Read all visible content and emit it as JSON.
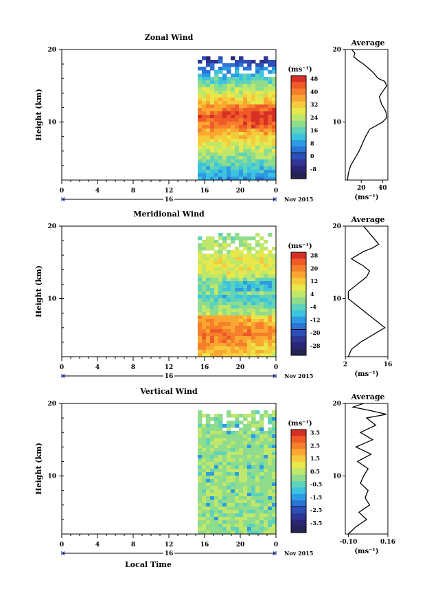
{
  "chart_data": [
    {
      "type": "heatmap",
      "title": "Zonal Wind",
      "ylabel": "Height (km)",
      "ylim": [
        2,
        20
      ],
      "yticks": [
        "10",
        "20"
      ],
      "xticks": [
        "0",
        "4",
        "8",
        "12",
        "16",
        "20",
        "0"
      ],
      "date_mid": "16",
      "date_end": "Nov 2015",
      "colorbar": {
        "unit": "(ms⁻¹)",
        "labels": [
          "48",
          "40",
          "32",
          "24",
          "16",
          "8",
          "0",
          "-8"
        ],
        "colors": [
          "#d63026",
          "#ef5a28",
          "#f57f2a",
          "#fba631",
          "#f5cb3b",
          "#e8e84b",
          "#bfe76a",
          "#8fdc8c",
          "#5fd3b9",
          "#3dc3de",
          "#2d9be3",
          "#2b74d6",
          "#2f4fb8",
          "#2e3592",
          "#2b2473",
          "#252352"
        ]
      },
      "average": {
        "title": "Average",
        "xlabel": "(ms⁻¹)",
        "xticks": [
          "20",
          "40"
        ],
        "xlim": [
          5,
          45
        ],
        "profile": [
          [
            7,
            2
          ],
          [
            8,
            3
          ],
          [
            10,
            4
          ],
          [
            14,
            5
          ],
          [
            18,
            6
          ],
          [
            21,
            7
          ],
          [
            24,
            8
          ],
          [
            28,
            9
          ],
          [
            34,
            9.5
          ],
          [
            40,
            10
          ],
          [
            44,
            10.6
          ],
          [
            43,
            11.5
          ],
          [
            39,
            12.5
          ],
          [
            37,
            13.5
          ],
          [
            40,
            14.2
          ],
          [
            44,
            15
          ],
          [
            42,
            15.6
          ],
          [
            36,
            16
          ],
          [
            33,
            16.5
          ],
          [
            30,
            17
          ],
          [
            26,
            17.5
          ],
          [
            22,
            18
          ],
          [
            17,
            18.5
          ],
          [
            13,
            19
          ],
          [
            14,
            19.5
          ],
          [
            11,
            20
          ]
        ]
      }
    },
    {
      "type": "heatmap",
      "title": "Meridional Wind",
      "ylabel": "Height (km)",
      "ylim": [
        2,
        20
      ],
      "yticks": [
        "10",
        "20"
      ],
      "xticks": [
        "0",
        "4",
        "8",
        "12",
        "16",
        "20",
        "0"
      ],
      "date_mid": "16",
      "date_end": "Nov 2015",
      "colorbar": {
        "unit": "(ms⁻¹)",
        "labels": [
          "28",
          "20",
          "12",
          "4",
          "-4",
          "-12",
          "-20",
          "-28"
        ],
        "colors": [
          "#d63026",
          "#ef5a28",
          "#f57f2a",
          "#fba631",
          "#f5cb3b",
          "#e8e84b",
          "#bfe76a",
          "#8fdc8c",
          "#5fd3b9",
          "#3dc3de",
          "#2d9be3",
          "#2b74d6",
          "#2f4fb8",
          "#2e3592",
          "#2b2473",
          "#252352"
        ]
      },
      "average": {
        "title": "Average",
        "xlabel": "(ms⁻¹)",
        "xticks": [
          "2",
          "16"
        ],
        "xlim": [
          2,
          16
        ],
        "profile": [
          [
            3,
            2
          ],
          [
            4,
            3
          ],
          [
            7,
            4
          ],
          [
            11,
            5
          ],
          [
            15,
            6
          ],
          [
            12,
            7
          ],
          [
            9,
            8
          ],
          [
            6,
            9
          ],
          [
            3,
            10
          ],
          [
            3,
            11
          ],
          [
            6,
            12
          ],
          [
            9,
            13
          ],
          [
            10,
            13.8
          ],
          [
            8,
            14.5
          ],
          [
            6,
            15
          ],
          [
            4,
            15.5
          ],
          [
            6,
            16
          ],
          [
            8,
            16.5
          ],
          [
            11,
            17
          ],
          [
            13,
            17.5
          ],
          [
            12,
            18
          ],
          [
            11,
            18.5
          ],
          [
            10,
            19
          ],
          [
            9,
            19.5
          ],
          [
            8,
            20
          ]
        ]
      }
    },
    {
      "type": "heatmap",
      "title": "Vertical Wind",
      "ylabel": "Height (km)",
      "xlabel": "Local Time",
      "ylim": [
        2,
        20
      ],
      "yticks": [
        "10",
        "20"
      ],
      "xticks": [
        "0",
        "4",
        "8",
        "12",
        "16",
        "20",
        "0"
      ],
      "date_mid": "16",
      "date_end": "Nov 2015",
      "colorbar": {
        "unit": "(ms⁻¹)",
        "labels": [
          "3.5",
          "2.5",
          "1.5",
          "0.5",
          "-0.5",
          "-1.5",
          "-2.5",
          "-3.5"
        ],
        "colors": [
          "#d63026",
          "#ef5a28",
          "#f57f2a",
          "#fba631",
          "#f5cb3b",
          "#e8e84b",
          "#bfe76a",
          "#8fdc8c",
          "#5fd3b9",
          "#3dc3de",
          "#2d9be3",
          "#2b74d6",
          "#2f4fb8",
          "#2e3592",
          "#2b2473",
          "#252352"
        ]
      },
      "average": {
        "title": "Average",
        "xlabel": "(ms⁻¹)",
        "xticks": [
          "-0.10",
          "0.16"
        ],
        "xlim": [
          -0.12,
          0.16
        ],
        "profile": [
          [
            -0.1,
            2
          ],
          [
            -0.05,
            3
          ],
          [
            0.02,
            4
          ],
          [
            -0.03,
            5
          ],
          [
            0.04,
            6
          ],
          [
            0.01,
            7
          ],
          [
            0.03,
            8
          ],
          [
            -0.02,
            9
          ],
          [
            0.0,
            10
          ],
          [
            0.03,
            11
          ],
          [
            -0.04,
            12
          ],
          [
            0.05,
            13
          ],
          [
            -0.05,
            14
          ],
          [
            0.06,
            15
          ],
          [
            -0.02,
            16
          ],
          [
            0.08,
            17
          ],
          [
            0.02,
            18
          ],
          [
            0.15,
            18.5
          ],
          [
            0.05,
            19
          ],
          [
            -0.07,
            19.5
          ],
          [
            0.0,
            20
          ]
        ]
      }
    }
  ]
}
